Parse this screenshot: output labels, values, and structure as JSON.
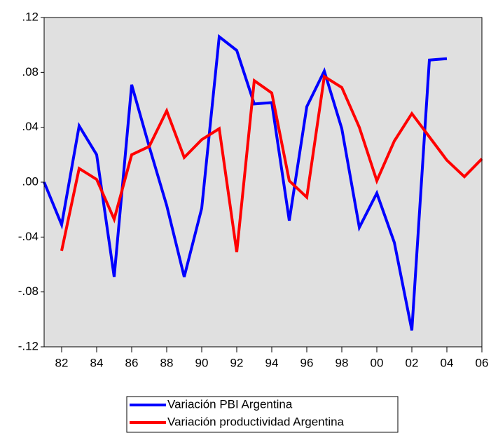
{
  "chart_data": {
    "type": "line",
    "x": [
      1981,
      1982,
      1983,
      1984,
      1985,
      1986,
      1987,
      1988,
      1989,
      1990,
      1991,
      1992,
      1993,
      1994,
      1995,
      1996,
      1997,
      1998,
      1999,
      2000,
      2001,
      2002,
      2003,
      2004,
      2005,
      2006
    ],
    "series": [
      {
        "name": "Variación PBI Argentina",
        "color": "#0000ff",
        "values": [
          0.0,
          -0.031,
          0.041,
          0.02,
          -0.069,
          0.071,
          0.026,
          -0.017,
          -0.069,
          -0.019,
          0.106,
          0.096,
          0.057,
          0.058,
          -0.028,
          0.055,
          0.081,
          0.039,
          -0.033,
          -0.008,
          -0.044,
          -0.108,
          0.089,
          0.09,
          null,
          null
        ]
      },
      {
        "name": "Variación productividad Argentina",
        "color": "#ff0000",
        "values": [
          null,
          -0.05,
          0.01,
          0.002,
          -0.027,
          0.02,
          0.026,
          0.052,
          0.018,
          0.031,
          0.039,
          -0.051,
          0.074,
          0.065,
          0.001,
          -0.011,
          0.077,
          0.069,
          0.04,
          0.001,
          0.03,
          0.05,
          0.033,
          0.016,
          0.004,
          0.017
        ]
      }
    ],
    "xlim": [
      1981,
      2006
    ],
    "xticks": [
      {
        "value": 1982,
        "label": "82"
      },
      {
        "value": 1984,
        "label": "84"
      },
      {
        "value": 1986,
        "label": "86"
      },
      {
        "value": 1988,
        "label": "88"
      },
      {
        "value": 1990,
        "label": "90"
      },
      {
        "value": 1992,
        "label": "92"
      },
      {
        "value": 1994,
        "label": "94"
      },
      {
        "value": 1996,
        "label": "96"
      },
      {
        "value": 1998,
        "label": "98"
      },
      {
        "value": 2000,
        "label": "00"
      },
      {
        "value": 2002,
        "label": "02"
      },
      {
        "value": 2004,
        "label": "04"
      },
      {
        "value": 2006,
        "label": "06"
      }
    ],
    "ylim": [
      -0.12,
      0.12
    ],
    "yticks": [
      {
        "value": -0.12,
        "label": "-.12"
      },
      {
        "value": -0.08,
        "label": "-.08"
      },
      {
        "value": -0.04,
        "label": "-.04"
      },
      {
        "value": 0,
        "label": ".00"
      },
      {
        "value": 0.04,
        "label": ".04"
      },
      {
        "value": 0.08,
        "label": ".08"
      },
      {
        "value": 0.12,
        "label": ".12"
      }
    ],
    "grid": false
  }
}
